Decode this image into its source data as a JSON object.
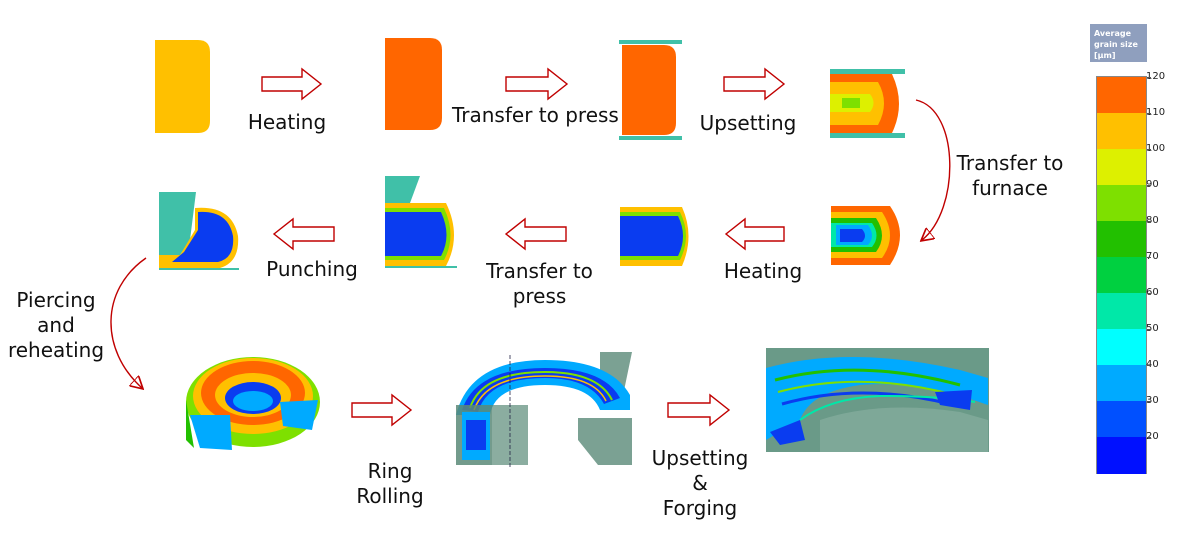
{
  "labels": {
    "heating_1": "Heating",
    "transfer_to_press_1": "Transfer to press",
    "upsetting_1": "Upsetting",
    "transfer_to_furnace": [
      "Transfer to",
      "furnace"
    ],
    "heating_2": "Heating",
    "transfer_to_press_2": [
      "Transfer to",
      "press"
    ],
    "punching": "Punching",
    "piercing_reheating": [
      "Piercing",
      "and",
      "reheating"
    ],
    "ring_rolling": [
      "Ring",
      "Rolling"
    ],
    "upsetting_forging": [
      "Upsetting",
      "&",
      "Forging"
    ]
  },
  "legend": {
    "title": "Average grain size [µm]",
    "ticks": [
      120,
      110,
      100,
      90,
      80,
      70,
      60,
      50,
      40,
      30,
      20
    ],
    "bands": [
      {
        "color": "#ff6600"
      },
      {
        "color": "#ffc000"
      },
      {
        "color": "#ddf000"
      },
      {
        "color": "#7ee000"
      },
      {
        "color": "#22c000"
      },
      {
        "color": "#00d040"
      },
      {
        "color": "#00e8a8"
      },
      {
        "color": "#00ffff"
      },
      {
        "color": "#00aaff"
      },
      {
        "color": "#0050ff"
      },
      {
        "color": "#0010ff"
      }
    ]
  },
  "colors": {
    "arrow_outline": "#c00000",
    "tool": "#40c0a8",
    "orange": "#ff6600",
    "amber": "#ffc000",
    "blue": "#0a3cf0"
  }
}
